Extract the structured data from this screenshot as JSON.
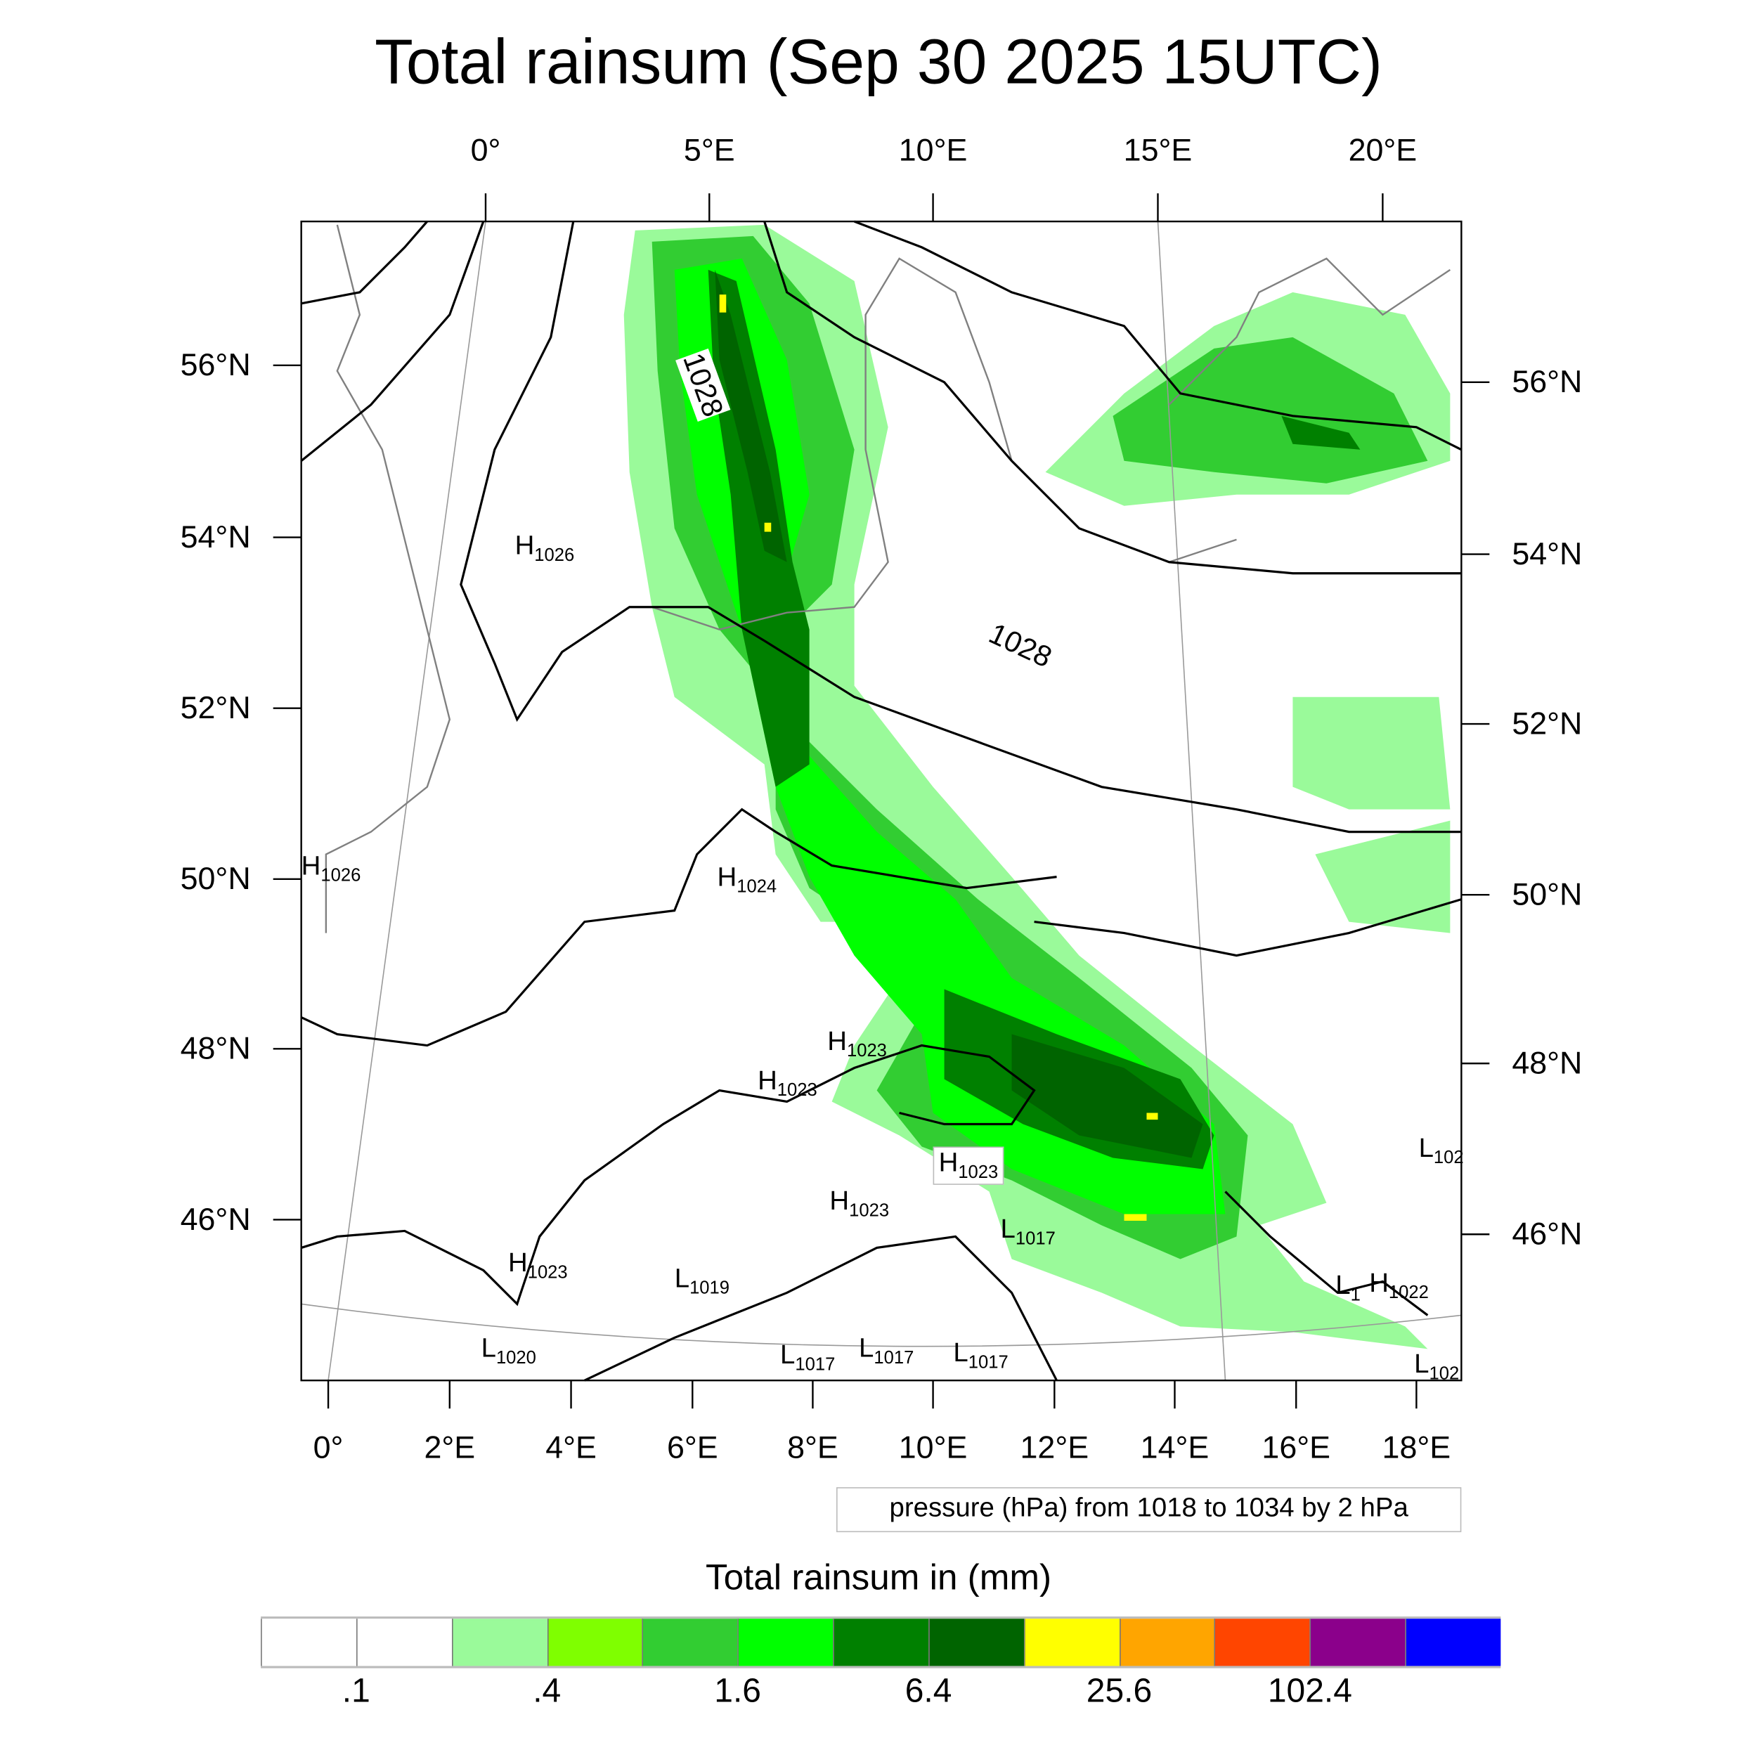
{
  "title": "Total rainsum (Sep 30 2025 15UTC)",
  "chart_data": {
    "type": "heatmap",
    "title": "Total rainsum (Sep 30 2025 15UTC)",
    "top_lon_ticks": [
      "0°",
      "5°E",
      "10°E",
      "15°E",
      "20°E"
    ],
    "bottom_lon_ticks": [
      "0°",
      "2°E",
      "4°E",
      "6°E",
      "8°E",
      "10°E",
      "12°E",
      "14°E",
      "16°E",
      "18°E"
    ],
    "left_lat_ticks": [
      "56°N",
      "54°N",
      "52°N",
      "50°N",
      "48°N",
      "46°N"
    ],
    "right_lat_ticks": [
      "56°N",
      "54°N",
      "52°N",
      "50°N",
      "48°N",
      "46°N"
    ],
    "contour_note": "pressure (hPa) from 1018 to 1034 by 2 hPa",
    "contour_labels": [
      "1028",
      "1028"
    ],
    "pressure_centers": [
      {
        "type": "H",
        "value": "1026"
      },
      {
        "type": "H",
        "value": "1026"
      },
      {
        "type": "H",
        "value": "1024"
      },
      {
        "type": "H",
        "value": "1023"
      },
      {
        "type": "H",
        "value": "1023"
      },
      {
        "type": "H",
        "value": "1023"
      },
      {
        "type": "H",
        "value": "1023"
      },
      {
        "type": "H",
        "value": "1023"
      },
      {
        "type": "L",
        "value": "1017"
      },
      {
        "type": "L",
        "value": "1019"
      },
      {
        "type": "L",
        "value": "1020"
      },
      {
        "type": "L",
        "value": "1017"
      },
      {
        "type": "L",
        "value": "1017"
      },
      {
        "type": "L",
        "value": "1017"
      },
      {
        "type": "L",
        "value": "1"
      },
      {
        "type": "H",
        "value": "1022"
      },
      {
        "type": "L",
        "value": "102"
      },
      {
        "type": "L",
        "value": "102"
      }
    ],
    "colorbar": {
      "title": "Total rainsum in (mm)",
      "colors": [
        "#ffffff",
        "#ffffff",
        "#9afa9a",
        "#7fff00",
        "#32cd32",
        "#00ff00",
        "#008000",
        "#006400",
        "#ffff00",
        "#ffa500",
        "#ff4500",
        "#8b008b",
        "#0000ff"
      ],
      "labels": [
        ".1",
        ".4",
        "1.6",
        "6.4",
        "25.6",
        "102.4"
      ]
    }
  }
}
